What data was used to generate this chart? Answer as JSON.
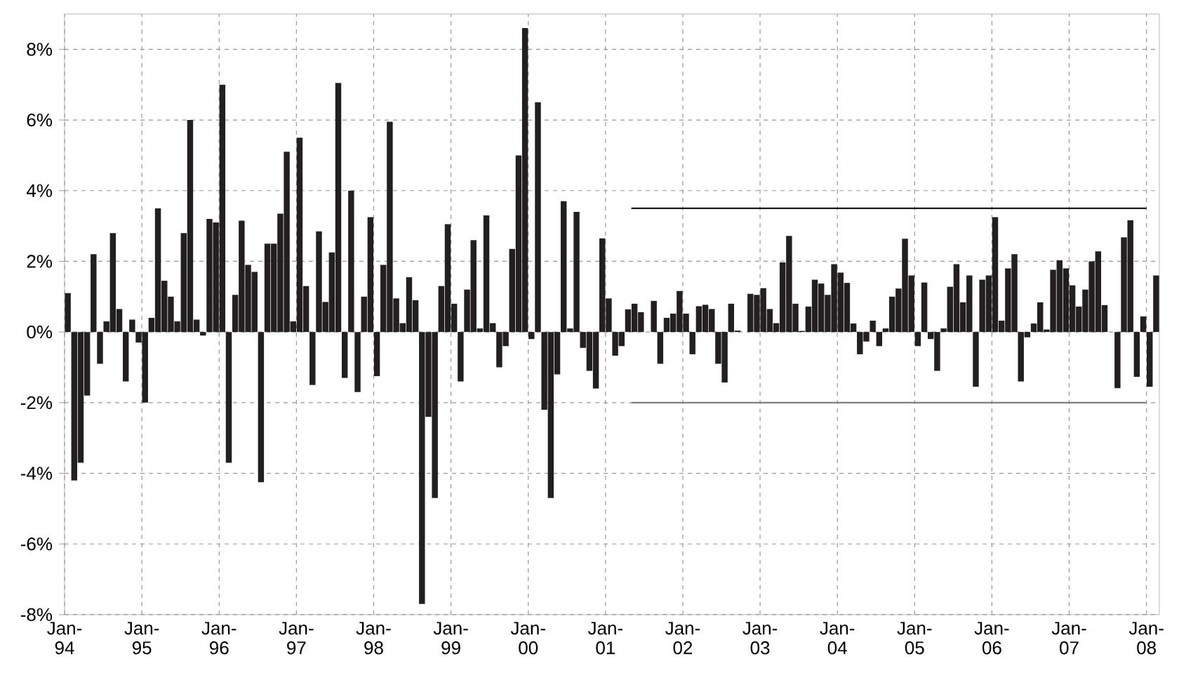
{
  "chart_data": {
    "type": "bar",
    "grid": true,
    "xlim": [
      "1994-01",
      "2008-03"
    ],
    "xticks": [
      {
        "value": "1994-01",
        "label": "Jan-94"
      },
      {
        "value": "1995-01",
        "label": "Jan-95"
      },
      {
        "value": "1996-01",
        "label": "Jan-96"
      },
      {
        "value": "1997-01",
        "label": "Jan-97"
      },
      {
        "value": "1998-01",
        "label": "Jan-98"
      },
      {
        "value": "1999-01",
        "label": "Jan-99"
      },
      {
        "value": "2000-01",
        "label": "Jan-00"
      },
      {
        "value": "2001-01",
        "label": "Jan-01"
      },
      {
        "value": "2002-01",
        "label": "Jan-02"
      },
      {
        "value": "2003-01",
        "label": "Jan-03"
      },
      {
        "value": "2004-01",
        "label": "Jan-04"
      },
      {
        "value": "2005-01",
        "label": "Jan-05"
      },
      {
        "value": "2006-01",
        "label": "Jan-06"
      },
      {
        "value": "2007-01",
        "label": "Jan-07"
      },
      {
        "value": "2008-01",
        "label": "Jan-08"
      }
    ],
    "ylim": [
      -8,
      9
    ],
    "yticks": [
      {
        "value": -8,
        "label": "-8%"
      },
      {
        "value": -6,
        "label": "-6%"
      },
      {
        "value": -4,
        "label": "-4%"
      },
      {
        "value": -2,
        "label": "-2%"
      },
      {
        "value": 0,
        "label": "0%"
      },
      {
        "value": 2,
        "label": "2%"
      },
      {
        "value": 4,
        "label": "4%"
      },
      {
        "value": 6,
        "label": "6%"
      },
      {
        "value": 8,
        "label": "8%"
      }
    ],
    "x": [
      "1994-01",
      "1994-02",
      "1994-03",
      "1994-04",
      "1994-05",
      "1994-06",
      "1994-07",
      "1994-08",
      "1994-09",
      "1994-10",
      "1994-11",
      "1994-12",
      "1995-01",
      "1995-02",
      "1995-03",
      "1995-04",
      "1995-05",
      "1995-06",
      "1995-07",
      "1995-08",
      "1995-09",
      "1995-10",
      "1995-11",
      "1995-12",
      "1996-01",
      "1996-02",
      "1996-03",
      "1996-04",
      "1996-05",
      "1996-06",
      "1996-07",
      "1996-08",
      "1996-09",
      "1996-10",
      "1996-11",
      "1996-12",
      "1997-01",
      "1997-02",
      "1997-03",
      "1997-04",
      "1997-05",
      "1997-06",
      "1997-07",
      "1997-08",
      "1997-09",
      "1997-10",
      "1997-11",
      "1997-12",
      "1998-01",
      "1998-02",
      "1998-03",
      "1998-04",
      "1998-05",
      "1998-06",
      "1998-07",
      "1998-08",
      "1998-09",
      "1998-10",
      "1998-11",
      "1998-12",
      "1999-01",
      "1999-02",
      "1999-03",
      "1999-04",
      "1999-05",
      "1999-06",
      "1999-07",
      "1999-08",
      "1999-09",
      "1999-10",
      "1999-11",
      "1999-12",
      "2000-01",
      "2000-02",
      "2000-03",
      "2000-04",
      "2000-05",
      "2000-06",
      "2000-07",
      "2000-08",
      "2000-09",
      "2000-10",
      "2000-11",
      "2000-12",
      "2001-01",
      "2001-02",
      "2001-03",
      "2001-04",
      "2001-05",
      "2001-06",
      "2001-07",
      "2001-08",
      "2001-09",
      "2001-10",
      "2001-11",
      "2001-12",
      "2002-01",
      "2002-02",
      "2002-03",
      "2002-04",
      "2002-05",
      "2002-06",
      "2002-07",
      "2002-08",
      "2002-09",
      "2002-10",
      "2002-11",
      "2002-12",
      "2003-01",
      "2003-02",
      "2003-03",
      "2003-04",
      "2003-05",
      "2003-06",
      "2003-07",
      "2003-08",
      "2003-09",
      "2003-10",
      "2003-11",
      "2003-12",
      "2004-01",
      "2004-02",
      "2004-03",
      "2004-04",
      "2004-05",
      "2004-06",
      "2004-07",
      "2004-08",
      "2004-09",
      "2004-10",
      "2004-11",
      "2004-12",
      "2005-01",
      "2005-02",
      "2005-03",
      "2005-04",
      "2005-05",
      "2005-06",
      "2005-07",
      "2005-08",
      "2005-09",
      "2005-10",
      "2005-11",
      "2005-12",
      "2006-01",
      "2006-02",
      "2006-03",
      "2006-04",
      "2006-05",
      "2006-06",
      "2006-07",
      "2006-08",
      "2006-09",
      "2006-10",
      "2006-11",
      "2006-12",
      "2007-01",
      "2007-02",
      "2007-03",
      "2007-04",
      "2007-05",
      "2007-06",
      "2007-07",
      "2007-08",
      "2007-09",
      "2007-10",
      "2007-11",
      "2007-12",
      "2008-01",
      "2008-02"
    ],
    "series": [
      {
        "color": "#231f20",
        "values": [
          1.1,
          -4.2,
          -3.7,
          -1.8,
          2.2,
          -0.9,
          0.3,
          2.8,
          0.65,
          -1.4,
          0.35,
          -0.3,
          -2.0,
          0.4,
          3.5,
          1.45,
          1.0,
          0.3,
          2.8,
          6.0,
          0.35,
          -0.1,
          3.2,
          3.1,
          7.0,
          -3.7,
          1.05,
          3.15,
          1.9,
          1.7,
          -4.25,
          2.5,
          2.5,
          3.35,
          5.1,
          0.3,
          5.5,
          1.3,
          -1.5,
          2.85,
          0.85,
          2.25,
          7.05,
          -1.3,
          4.0,
          -1.7,
          1.0,
          3.25,
          -1.25,
          1.9,
          5.95,
          0.95,
          0.25,
          1.55,
          0.9,
          -7.7,
          -2.4,
          -4.7,
          1.3,
          3.05,
          0.8,
          -1.4,
          1.2,
          2.6,
          0.1,
          3.3,
          0.25,
          -1.0,
          -0.4,
          2.35,
          5.0,
          8.6,
          -0.2,
          6.5,
          -2.2,
          -4.7,
          -1.2,
          3.7,
          0.1,
          3.4,
          -0.45,
          -1.1,
          -1.6,
          2.65,
          0.95,
          -0.67,
          -0.4,
          0.64,
          0.8,
          0.56,
          0,
          0.88,
          -0.9,
          0.4,
          0.52,
          1.16,
          0.52,
          -0.63,
          0.73,
          0.77,
          0.65,
          -0.9,
          -1.43,
          0.8,
          0.04,
          0,
          1.08,
          1.05,
          1.24,
          0.65,
          0.25,
          1.97,
          2.72,
          0.8,
          0.03,
          0.72,
          1.48,
          1.37,
          1.05,
          1.92,
          1.68,
          1.39,
          0.24,
          -0.63,
          -0.27,
          0.32,
          -0.4,
          0.1,
          1.0,
          1.23,
          2.64,
          1.6,
          -0.4,
          1.4,
          -0.2,
          -1.1,
          0.1,
          1.28,
          1.92,
          0.84,
          1.6,
          -1.55,
          1.48,
          1.6,
          3.25,
          0.32,
          1.8,
          2.2,
          -1.4,
          -0.15,
          0.24,
          0.84,
          0.07,
          1.76,
          2.03,
          1.8,
          1.32,
          0.72,
          1.2,
          2.0,
          2.28,
          0.76,
          0,
          -1.59,
          2.68,
          3.16,
          -1.27,
          0.44,
          -1.55,
          1.6
        ]
      },
      {
        "type": "line",
        "color": "#1a1a1a",
        "x": [
          "2001-05",
          "2008-01"
        ],
        "values": [
          3.5,
          3.5
        ]
      },
      {
        "type": "line",
        "color": "#808080",
        "x": [
          "2001-05",
          "2008-01"
        ],
        "values": [
          -2,
          -2
        ]
      }
    ]
  }
}
